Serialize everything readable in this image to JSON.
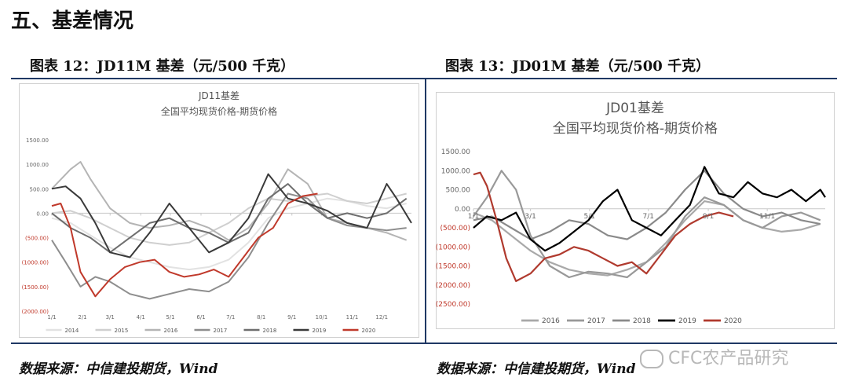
{
  "section_title": "五、基差情况",
  "figures": [
    {
      "caption": "图表 12：JD11M 基差（元/500 千克）",
      "source": "数据来源：中信建投期货，Wind"
    },
    {
      "caption": "图表 13：JD01M 基差（元/500 千克）",
      "source": "数据来源：中信建投期货，Wind"
    }
  ],
  "watermark": {
    "icon": "wechat-icon",
    "text": "CFC农产品研究"
  },
  "chart_data": [
    {
      "type": "line",
      "title": "JD11基差",
      "subtitle": "全国平均现货价格-期货价格",
      "ylim": [
        -2000,
        1500
      ],
      "yticks": [
        "1500.00",
        "1000.00",
        "500.00",
        "0.00",
        "(500.00)",
        "(1000.00)",
        "(1500.00)",
        "(2000.00)"
      ],
      "ytick_values": [
        1500,
        1000,
        500,
        0,
        -500,
        -1000,
        -1500,
        -2000
      ],
      "x_ticks": [
        "1/1",
        "2/1",
        "3/1",
        "4/1",
        "5/1",
        "6/1",
        "7/1",
        "8/1",
        "9/1",
        "10/1",
        "11/1",
        "12/1"
      ],
      "x_tick_values": [
        1,
        32,
        60,
        91,
        121,
        152,
        182,
        213,
        244,
        274,
        305,
        335
      ],
      "xlim": [
        1,
        365
      ],
      "grid": false,
      "legend_position": "bottom",
      "series": [
        {
          "name": "2014",
          "color": "#e2e2e2",
          "x": [
            1,
            20,
            40,
            60,
            80,
            100,
            120,
            140,
            160,
            180,
            200,
            220,
            240,
            260,
            280,
            300,
            320,
            340,
            360
          ],
          "values": [
            -100,
            -200,
            -450,
            -700,
            -900,
            -1000,
            -1100,
            -1150,
            -1100,
            -950,
            -600,
            -100,
            100,
            200,
            300,
            250,
            150,
            100,
            200
          ]
        },
        {
          "name": "2015",
          "color": "#cfcfcf",
          "x": [
            1,
            20,
            40,
            60,
            80,
            100,
            120,
            140,
            160,
            180,
            200,
            220,
            240,
            260,
            280,
            300,
            320,
            340,
            360
          ],
          "values": [
            0,
            50,
            -100,
            -300,
            -500,
            -600,
            -650,
            -600,
            -400,
            -200,
            100,
            300,
            250,
            350,
            400,
            250,
            200,
            300,
            400
          ]
        },
        {
          "name": "2016",
          "color": "#b4b4b4",
          "x": [
            1,
            20,
            30,
            40,
            60,
            80,
            100,
            120,
            140,
            160,
            180,
            200,
            220,
            240,
            260,
            280,
            300,
            320,
            340,
            360
          ],
          "values": [
            500,
            900,
            1050,
            700,
            100,
            -200,
            -300,
            -250,
            -150,
            -300,
            -550,
            -300,
            200,
            900,
            600,
            -100,
            -200,
            -300,
            -400,
            -550
          ]
        },
        {
          "name": "2017",
          "color": "#8e8e8e",
          "x": [
            1,
            15,
            30,
            45,
            60,
            80,
            100,
            120,
            140,
            160,
            180,
            200,
            220,
            240,
            260,
            280,
            300,
            320,
            340,
            360
          ],
          "values": [
            -550,
            -1000,
            -1500,
            -1300,
            -1400,
            -1650,
            -1750,
            -1650,
            -1550,
            -1600,
            -1400,
            -900,
            -200,
            400,
            300,
            -100,
            -250,
            -300,
            -350,
            -300
          ]
        },
        {
          "name": "2018",
          "color": "#6e6e6e",
          "x": [
            1,
            20,
            40,
            60,
            80,
            100,
            120,
            140,
            160,
            180,
            200,
            220,
            240,
            260,
            280,
            300,
            320,
            340,
            360
          ],
          "values": [
            0,
            -300,
            -500,
            -800,
            -500,
            -200,
            -100,
            -300,
            -400,
            -600,
            -400,
            300,
            600,
            200,
            -100,
            0,
            -100,
            0,
            300
          ]
        },
        {
          "name": "2019",
          "color": "#3a3a3a",
          "x": [
            1,
            15,
            30,
            45,
            60,
            80,
            100,
            120,
            140,
            160,
            180,
            200,
            220,
            240,
            260,
            280,
            300,
            320,
            340,
            350,
            365
          ],
          "values": [
            500,
            550,
            300,
            -200,
            -800,
            -900,
            -400,
            200,
            -300,
            -800,
            -600,
            -100,
            800,
            300,
            200,
            50,
            -200,
            -300,
            600,
            300,
            -200
          ]
        },
        {
          "name": "2020",
          "color": "#c0392b",
          "x": [
            1,
            10,
            20,
            30,
            45,
            60,
            75,
            90,
            105,
            120,
            135,
            150,
            165,
            180,
            195,
            210,
            225,
            240,
            255,
            270
          ],
          "values": [
            150,
            200,
            -300,
            -1200,
            -1700,
            -1350,
            -1100,
            -1000,
            -950,
            -1200,
            -1300,
            -1250,
            -1150,
            -1300,
            -900,
            -500,
            -300,
            200,
            350,
            400
          ]
        }
      ]
    },
    {
      "type": "line",
      "title": "JD01基差",
      "subtitle": "全国平均现货价格-期货价格",
      "ylim": [
        -2500,
        1500
      ],
      "yticks": [
        "1500.00",
        "1000.00",
        "500.00",
        "0.00",
        "(500.00)",
        "(1000.00)",
        "(1500.00)",
        "(2000.00)",
        "(2500.00)"
      ],
      "ytick_values": [
        1500,
        1000,
        500,
        0,
        -500,
        -1000,
        -1500,
        -2000,
        -2500
      ],
      "x_ticks": [
        "1/1",
        "3/1",
        "5/1",
        "7/1",
        "9/1",
        "11/1"
      ],
      "x_tick_values": [
        1,
        60,
        121,
        182,
        244,
        305
      ],
      "xlim": [
        1,
        365
      ],
      "grid": false,
      "legend_position": "bottom",
      "series": [
        {
          "name": "2016",
          "color": "#a9a9a9",
          "x": [
            1,
            20,
            40,
            60,
            80,
            100,
            120,
            140,
            160,
            180,
            200,
            220,
            240,
            260,
            280,
            300,
            320,
            340,
            360
          ],
          "values": [
            -100,
            -300,
            -700,
            -1100,
            -1400,
            -1600,
            -1700,
            -1750,
            -1600,
            -1400,
            -900,
            -300,
            200,
            100,
            -300,
            -500,
            -600,
            -550,
            -400
          ]
        },
        {
          "name": "2017",
          "color": "#999999",
          "x": [
            1,
            15,
            30,
            45,
            60,
            80,
            100,
            120,
            140,
            160,
            180,
            200,
            220,
            240,
            260,
            280,
            300,
            320,
            340,
            360
          ],
          "values": [
            -200,
            300,
            1000,
            500,
            -700,
            -1500,
            -1800,
            -1650,
            -1700,
            -1800,
            -1400,
            -1000,
            -200,
            300,
            100,
            -300,
            -500,
            -200,
            -100,
            -300
          ]
        },
        {
          "name": "2018",
          "color": "#8a8a8a",
          "x": [
            1,
            20,
            40,
            60,
            80,
            100,
            120,
            140,
            160,
            180,
            200,
            220,
            240,
            260,
            280,
            300,
            320,
            340,
            360
          ],
          "values": [
            -300,
            -200,
            -500,
            -800,
            -600,
            -300,
            -400,
            -700,
            -800,
            -500,
            -100,
            500,
            1000,
            400,
            0,
            -200,
            -100,
            -300,
            -400
          ]
        },
        {
          "name": "2019",
          "color": "#000000",
          "x": [
            1,
            15,
            30,
            45,
            60,
            75,
            90,
            105,
            120,
            135,
            150,
            165,
            180,
            195,
            210,
            225,
            240,
            255,
            270,
            285,
            300,
            315,
            330,
            345,
            360,
            365
          ],
          "values": [
            -500,
            -200,
            -300,
            -100,
            -800,
            -1100,
            -900,
            -600,
            -300,
            200,
            500,
            -300,
            -500,
            -700,
            -300,
            100,
            1100,
            400,
            300,
            700,
            400,
            300,
            500,
            200,
            500,
            300
          ]
        },
        {
          "name": "2020",
          "color": "#b03a2e",
          "x": [
            1,
            8,
            15,
            25,
            35,
            45,
            60,
            75,
            90,
            105,
            120,
            135,
            150,
            165,
            180,
            195,
            210,
            225,
            240,
            255,
            270
          ],
          "values": [
            900,
            950,
            600,
            -300,
            -1300,
            -1900,
            -1700,
            -1300,
            -1200,
            -1000,
            -1100,
            -1300,
            -1500,
            -1400,
            -1700,
            -1200,
            -700,
            -400,
            -200,
            -100,
            -200
          ]
        }
      ]
    }
  ]
}
